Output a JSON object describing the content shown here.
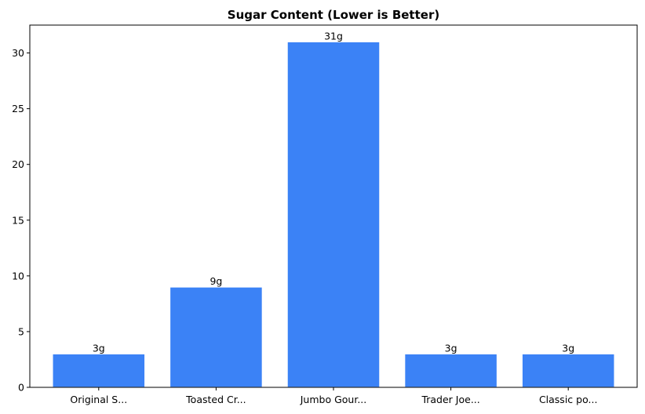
{
  "chart_data": {
    "type": "bar",
    "title": "Sugar Content (Lower is Better)",
    "categories": [
      "Original S...",
      "Toasted Cr...",
      "Jumbo Gour...",
      "Trader Joe...",
      "Classic po..."
    ],
    "values": [
      3,
      9,
      31,
      3,
      3
    ],
    "value_labels": [
      "3g",
      "9g",
      "31g",
      "3g",
      "3g"
    ],
    "xlabel": "",
    "ylabel": "",
    "ylim": [
      0,
      32.5
    ],
    "yticks": [
      0,
      5,
      10,
      15,
      20,
      25,
      30
    ],
    "ytick_labels": [
      "0",
      "5",
      "10",
      "15",
      "20",
      "25",
      "30"
    ],
    "grid": false,
    "bar_color": "#3b82f6",
    "bar_edge_color": "#ffffff"
  }
}
